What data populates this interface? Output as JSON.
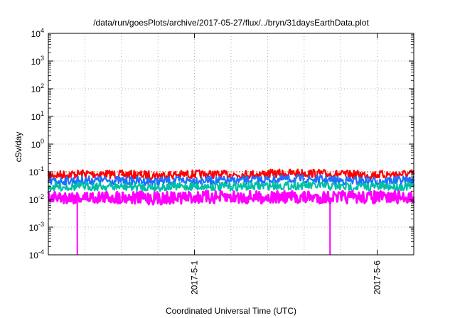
{
  "chart_data": {
    "type": "line",
    "title": "/data/run/goesPlots/archive/2017-05-27/flux/../bryn/31daysEarthData.plot",
    "xlabel": "Coordinated Universal Time (UTC)",
    "ylabel": "cSv/day",
    "y_scale": "log",
    "ylim": [
      0.0001,
      10000
    ],
    "y_ticks": [
      {
        "value": 0.0001,
        "base": "10",
        "exp": "-4"
      },
      {
        "value": 0.001,
        "base": "10",
        "exp": "-3"
      },
      {
        "value": 0.01,
        "base": "10",
        "exp": "-2"
      },
      {
        "value": 0.1,
        "base": "10",
        "exp": "-1"
      },
      {
        "value": 1,
        "base": "10",
        "exp": "0"
      },
      {
        "value": 10,
        "base": "10",
        "exp": "1"
      },
      {
        "value": 100,
        "base": "10",
        "exp": "2"
      },
      {
        "value": 1000,
        "base": "10",
        "exp": "3"
      },
      {
        "value": 10000,
        "base": "10",
        "exp": "4"
      }
    ],
    "xlim": [
      "2017-04-27",
      "2017-05-07"
    ],
    "x_ticks": [
      {
        "value": "2017-05-01",
        "label": "2017-5-1"
      },
      {
        "value": "2017-05-06",
        "label": "2017-5-6"
      }
    ],
    "x_minor_grid_days": 1,
    "grid": true,
    "reference_line": {
      "value": 0.1,
      "color": "#c0392b",
      "style": "dotted"
    },
    "series": [
      {
        "color": "#ff0000",
        "points": [
          [
            "2017-04-27",
            0.075
          ],
          [
            "2017-04-28",
            0.085
          ],
          [
            "2017-04-29",
            0.08
          ],
          [
            "2017-04-30",
            0.075
          ],
          [
            "2017-05-01",
            0.082
          ],
          [
            "2017-05-02",
            0.078
          ],
          [
            "2017-05-03",
            0.085
          ],
          [
            "2017-05-04",
            0.09
          ],
          [
            "2017-05-05",
            0.08
          ],
          [
            "2017-05-06",
            0.078
          ],
          [
            "2017-05-07",
            0.085
          ]
        ]
      },
      {
        "color": "#1e6fff",
        "points": [
          [
            "2017-04-27",
            0.045
          ],
          [
            "2017-04-28",
            0.05
          ],
          [
            "2017-04-29",
            0.048
          ],
          [
            "2017-04-30",
            0.045
          ],
          [
            "2017-05-01",
            0.05
          ],
          [
            "2017-05-02",
            0.047
          ],
          [
            "2017-05-03",
            0.052
          ],
          [
            "2017-05-04",
            0.055
          ],
          [
            "2017-05-05",
            0.048
          ],
          [
            "2017-05-06",
            0.047
          ],
          [
            "2017-05-07",
            0.05
          ]
        ]
      },
      {
        "color": "#00bfa5",
        "points": [
          [
            "2017-04-27",
            0.028
          ],
          [
            "2017-04-28",
            0.03
          ],
          [
            "2017-04-29",
            0.029
          ],
          [
            "2017-04-30",
            0.028
          ],
          [
            "2017-05-01",
            0.03
          ],
          [
            "2017-05-02",
            0.029
          ],
          [
            "2017-05-03",
            0.031
          ],
          [
            "2017-05-04",
            0.032
          ],
          [
            "2017-05-05",
            0.029
          ],
          [
            "2017-05-06",
            0.029
          ],
          [
            "2017-05-07",
            0.03
          ]
        ]
      },
      {
        "color": "#ff00ff",
        "points": [
          [
            "2017-04-27",
            0.012
          ],
          [
            "2017-04-27T19:00",
            0.0001
          ],
          [
            "2017-04-28",
            0.012
          ],
          [
            "2017-04-29",
            0.012
          ],
          [
            "2017-04-30",
            0.011
          ],
          [
            "2017-05-01",
            0.012
          ],
          [
            "2017-05-02",
            0.012
          ],
          [
            "2017-05-03",
            0.012
          ],
          [
            "2017-05-04",
            0.012
          ],
          [
            "2017-05-04T17:00",
            0.0001
          ],
          [
            "2017-05-05",
            0.012
          ],
          [
            "2017-05-06",
            0.012
          ],
          [
            "2017-05-07",
            0.012
          ]
        ]
      }
    ]
  }
}
